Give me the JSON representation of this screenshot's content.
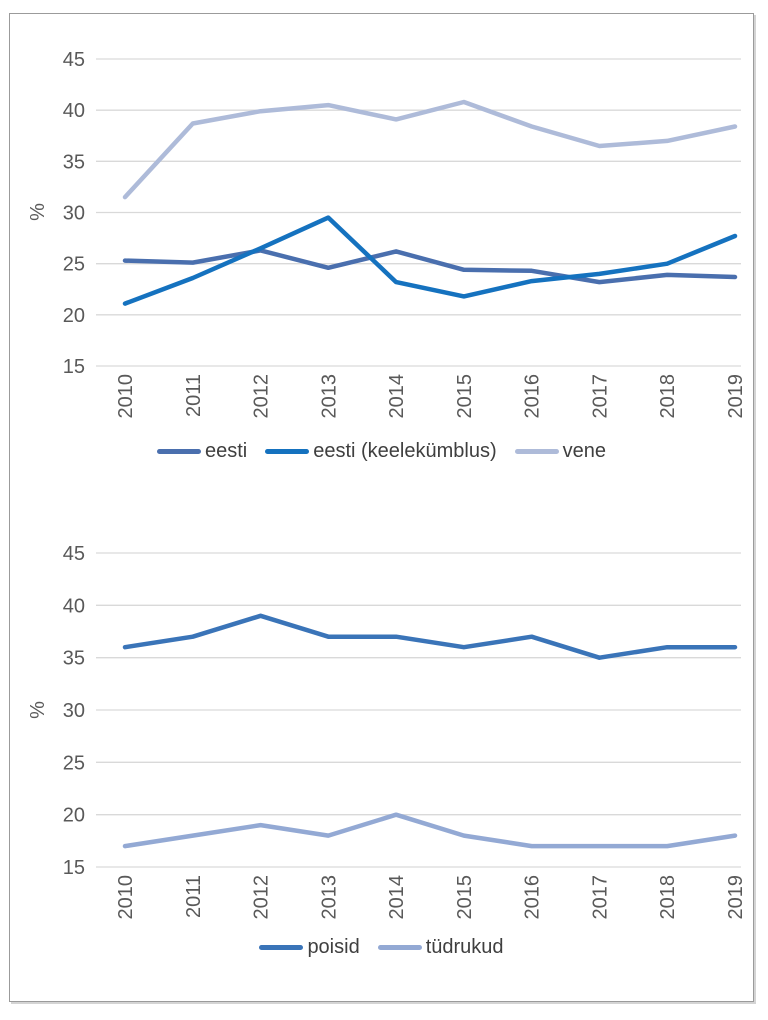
{
  "figure": {
    "background": "#ffffff",
    "border_color": "#9b9b9b"
  },
  "colors": {
    "gridline": "#d9d9d9",
    "tick_label": "#595959",
    "legend_text": "#3f3f3f"
  },
  "chart_data": [
    {
      "type": "line",
      "title": "",
      "xlabel": "",
      "ylabel": "%",
      "categories": [
        "2010",
        "2011",
        "2012",
        "2013",
        "2014",
        "2015",
        "2016",
        "2017",
        "2018",
        "2019"
      ],
      "yticks": [
        45,
        40,
        35,
        30,
        25,
        20,
        15
      ],
      "ylim": [
        15,
        45
      ],
      "grid": true,
      "legend_position": "bottom",
      "series": [
        {
          "name": "eesti",
          "color": "#4a6fae",
          "values": [
            25.3,
            25.1,
            26.3,
            24.6,
            26.2,
            24.4,
            24.3,
            23.2,
            23.9,
            23.7
          ]
        },
        {
          "name": "eesti (keelekümblus)",
          "color": "#1572bf",
          "values": [
            21.1,
            23.6,
            26.5,
            29.5,
            23.2,
            21.8,
            23.3,
            24.0,
            25.0,
            27.7
          ]
        },
        {
          "name": "vene",
          "color": "#aebbd9",
          "values": [
            31.5,
            38.7,
            39.9,
            40.5,
            39.1,
            40.8,
            38.4,
            36.5,
            37.0,
            38.4
          ]
        }
      ]
    },
    {
      "type": "line",
      "title": "",
      "xlabel": "",
      "ylabel": "%",
      "categories": [
        "2010",
        "2011",
        "2012",
        "2013",
        "2014",
        "2015",
        "2016",
        "2017",
        "2018",
        "2019"
      ],
      "yticks": [
        45,
        40,
        35,
        30,
        25,
        20,
        15
      ],
      "ylim": [
        15,
        45
      ],
      "grid": true,
      "legend_position": "bottom",
      "series": [
        {
          "name": "poisid",
          "color": "#3a74b8",
          "values": [
            36,
            37,
            39,
            37,
            37,
            36,
            37,
            35,
            36,
            36
          ]
        },
        {
          "name": "tüdrukud",
          "color": "#93a9d4",
          "values": [
            17,
            18,
            19,
            18,
            20,
            18,
            17,
            17,
            17,
            18
          ]
        }
      ]
    }
  ]
}
